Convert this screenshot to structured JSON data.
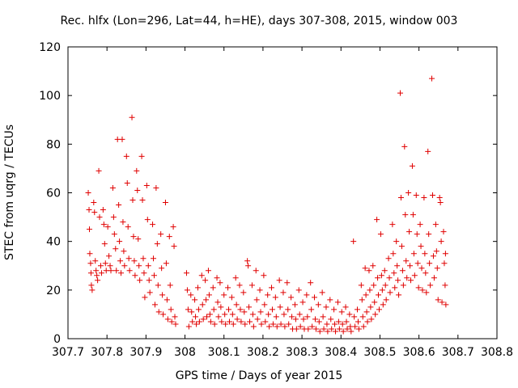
{
  "chart_data": {
    "type": "scatter",
    "title": "Rec. hlfx (Lon=296, Lat=44, h=HE), days 307-308, 2015, window 003",
    "xlabel": "GPS time / Days of year 2015",
    "ylabel": "STEC from uqrg / TECUs",
    "xlim": [
      307.7,
      308.8
    ],
    "ylim": [
      0,
      120
    ],
    "xticks": [
      307.7,
      307.8,
      307.9,
      308,
      308.1,
      308.2,
      308.3,
      308.4,
      308.5,
      308.6,
      308.7,
      308.8
    ],
    "xtick_labels": [
      "307.7",
      "307.8",
      "307.9",
      "308",
      "308.1",
      "308.2",
      "308.3",
      "308.4",
      "308.5",
      "308.6",
      "308.7",
      "308.8"
    ],
    "yticks": [
      0,
      20,
      40,
      60,
      80,
      100,
      120
    ],
    "ytick_labels": [
      "0",
      "20",
      "40",
      "60",
      "80",
      "100",
      "120"
    ],
    "grid": false,
    "marker": "+",
    "color": "#e00000",
    "points": [
      [
        307.752,
        60
      ],
      [
        307.754,
        53
      ],
      [
        307.755,
        45
      ],
      [
        307.756,
        35
      ],
      [
        307.758,
        31
      ],
      [
        307.759,
        27
      ],
      [
        307.76,
        22
      ],
      [
        307.762,
        20
      ],
      [
        307.766,
        56
      ],
      [
        307.768,
        52
      ],
      [
        307.77,
        32
      ],
      [
        307.772,
        28
      ],
      [
        307.774,
        26
      ],
      [
        307.776,
        24
      ],
      [
        307.779,
        69
      ],
      [
        307.781,
        50
      ],
      [
        307.784,
        30
      ],
      [
        307.786,
        27
      ],
      [
        307.79,
        53
      ],
      [
        307.792,
        47
      ],
      [
        307.794,
        39
      ],
      [
        307.796,
        31
      ],
      [
        307.798,
        28
      ],
      [
        307.802,
        46
      ],
      [
        307.805,
        34
      ],
      [
        307.808,
        30
      ],
      [
        307.81,
        28
      ],
      [
        307.815,
        62
      ],
      [
        307.817,
        50
      ],
      [
        307.819,
        43
      ],
      [
        307.822,
        37
      ],
      [
        307.824,
        28
      ],
      [
        307.827,
        82
      ],
      [
        307.83,
        55
      ],
      [
        307.832,
        40
      ],
      [
        307.834,
        32
      ],
      [
        307.836,
        27
      ],
      [
        307.839,
        82
      ],
      [
        307.841,
        48
      ],
      [
        307.843,
        36
      ],
      [
        307.845,
        30
      ],
      [
        307.85,
        75
      ],
      [
        307.852,
        64
      ],
      [
        307.854,
        46
      ],
      [
        307.856,
        33
      ],
      [
        307.858,
        28
      ],
      [
        307.864,
        91
      ],
      [
        307.866,
        57
      ],
      [
        307.868,
        42
      ],
      [
        307.87,
        32
      ],
      [
        307.872,
        26
      ],
      [
        307.876,
        69
      ],
      [
        307.878,
        61
      ],
      [
        307.88,
        41
      ],
      [
        307.882,
        30
      ],
      [
        307.884,
        24
      ],
      [
        307.889,
        75
      ],
      [
        307.891,
        57
      ],
      [
        307.893,
        33
      ],
      [
        307.895,
        27
      ],
      [
        307.897,
        17
      ],
      [
        307.902,
        63
      ],
      [
        307.904,
        49
      ],
      [
        307.906,
        30
      ],
      [
        307.908,
        24
      ],
      [
        307.91,
        19
      ],
      [
        307.917,
        47
      ],
      [
        307.919,
        33
      ],
      [
        307.921,
        26
      ],
      [
        307.923,
        14
      ],
      [
        307.926,
        62
      ],
      [
        307.929,
        39
      ],
      [
        307.931,
        22
      ],
      [
        307.933,
        11
      ],
      [
        307.938,
        43
      ],
      [
        307.94,
        29
      ],
      [
        307.942,
        18
      ],
      [
        307.944,
        10
      ],
      [
        307.95,
        56
      ],
      [
        307.952,
        31
      ],
      [
        307.954,
        16
      ],
      [
        307.956,
        8
      ],
      [
        307.96,
        42
      ],
      [
        307.962,
        22
      ],
      [
        307.964,
        12
      ],
      [
        307.966,
        7
      ],
      [
        307.97,
        46
      ],
      [
        307.972,
        38
      ],
      [
        307.974,
        9
      ],
      [
        307.976,
        6
      ],
      [
        308.004,
        27
      ],
      [
        308.006,
        20
      ],
      [
        308.008,
        12
      ],
      [
        308.01,
        5
      ],
      [
        308.015,
        18
      ],
      [
        308.017,
        11
      ],
      [
        308.019,
        7
      ],
      [
        308.025,
        16
      ],
      [
        308.027,
        9
      ],
      [
        308.029,
        6
      ],
      [
        308.033,
        21
      ],
      [
        308.035,
        12
      ],
      [
        308.037,
        7
      ],
      [
        308.043,
        26
      ],
      [
        308.045,
        14
      ],
      [
        308.047,
        8
      ],
      [
        308.052,
        24
      ],
      [
        308.054,
        16
      ],
      [
        308.056,
        9
      ],
      [
        308.06,
        28
      ],
      [
        308.062,
        18
      ],
      [
        308.064,
        10
      ],
      [
        308.066,
        7
      ],
      [
        308.072,
        21
      ],
      [
        308.074,
        12
      ],
      [
        308.076,
        6
      ],
      [
        308.082,
        25
      ],
      [
        308.084,
        15
      ],
      [
        308.086,
        9
      ],
      [
        308.09,
        23
      ],
      [
        308.092,
        13
      ],
      [
        308.094,
        7
      ],
      [
        308.1,
        18
      ],
      [
        308.102,
        10
      ],
      [
        308.104,
        6
      ],
      [
        308.11,
        21
      ],
      [
        308.112,
        12
      ],
      [
        308.114,
        7
      ],
      [
        308.12,
        17
      ],
      [
        308.122,
        10
      ],
      [
        308.124,
        6
      ],
      [
        308.13,
        25
      ],
      [
        308.132,
        14
      ],
      [
        308.134,
        8
      ],
      [
        308.14,
        22
      ],
      [
        308.142,
        12
      ],
      [
        308.144,
        7
      ],
      [
        308.15,
        19
      ],
      [
        308.152,
        11
      ],
      [
        308.154,
        6
      ],
      [
        308.16,
        32
      ],
      [
        308.162,
        30
      ],
      [
        308.164,
        13
      ],
      [
        308.166,
        7
      ],
      [
        308.172,
        22
      ],
      [
        308.174,
        10
      ],
      [
        308.176,
        5
      ],
      [
        308.182,
        28
      ],
      [
        308.184,
        16
      ],
      [
        308.186,
        8
      ],
      [
        308.192,
        20
      ],
      [
        308.194,
        11
      ],
      [
        308.196,
        6
      ],
      [
        308.202,
        26
      ],
      [
        308.204,
        14
      ],
      [
        308.206,
        7
      ],
      [
        308.212,
        18
      ],
      [
        308.214,
        10
      ],
      [
        308.216,
        5
      ],
      [
        308.222,
        21
      ],
      [
        308.224,
        12
      ],
      [
        308.226,
        6
      ],
      [
        308.232,
        17
      ],
      [
        308.234,
        9
      ],
      [
        308.236,
        5
      ],
      [
        308.242,
        24
      ],
      [
        308.244,
        13
      ],
      [
        308.246,
        6
      ],
      [
        308.252,
        19
      ],
      [
        308.254,
        10
      ],
      [
        308.256,
        5
      ],
      [
        308.262,
        23
      ],
      [
        308.264,
        12
      ],
      [
        308.266,
        6
      ],
      [
        308.272,
        17
      ],
      [
        308.274,
        9
      ],
      [
        308.276,
        4
      ],
      [
        308.282,
        14
      ],
      [
        308.284,
        8
      ],
      [
        308.286,
        4
      ],
      [
        308.292,
        20
      ],
      [
        308.294,
        10
      ],
      [
        308.296,
        5
      ],
      [
        308.302,
        15
      ],
      [
        308.304,
        8
      ],
      [
        308.306,
        4
      ],
      [
        308.312,
        18
      ],
      [
        308.314,
        9
      ],
      [
        308.316,
        4
      ],
      [
        308.322,
        23
      ],
      [
        308.324,
        12
      ],
      [
        308.326,
        5
      ],
      [
        308.332,
        17
      ],
      [
        308.334,
        8
      ],
      [
        308.336,
        4
      ],
      [
        308.342,
        14
      ],
      [
        308.344,
        7
      ],
      [
        308.346,
        3
      ],
      [
        308.352,
        19
      ],
      [
        308.354,
        9
      ],
      [
        308.356,
        4
      ],
      [
        308.362,
        13
      ],
      [
        308.364,
        6
      ],
      [
        308.366,
        3
      ],
      [
        308.372,
        16
      ],
      [
        308.374,
        8
      ],
      [
        308.376,
        4
      ],
      [
        308.382,
        12
      ],
      [
        308.384,
        6
      ],
      [
        308.386,
        3
      ],
      [
        308.392,
        15
      ],
      [
        308.394,
        7
      ],
      [
        308.396,
        4
      ],
      [
        308.402,
        11
      ],
      [
        308.404,
        6
      ],
      [
        308.406,
        3
      ],
      [
        308.412,
        13
      ],
      [
        308.414,
        7
      ],
      [
        308.416,
        4
      ],
      [
        308.422,
        10
      ],
      [
        308.424,
        5
      ],
      [
        308.426,
        3
      ],
      [
        308.432,
        40
      ],
      [
        308.434,
        9
      ],
      [
        308.436,
        5
      ],
      [
        308.442,
        12
      ],
      [
        308.444,
        7
      ],
      [
        308.446,
        4
      ],
      [
        308.452,
        22
      ],
      [
        308.454,
        16
      ],
      [
        308.456,
        9
      ],
      [
        308.458,
        5
      ],
      [
        308.462,
        29
      ],
      [
        308.464,
        18
      ],
      [
        308.466,
        11
      ],
      [
        308.468,
        7
      ],
      [
        308.472,
        28
      ],
      [
        308.474,
        20
      ],
      [
        308.476,
        13
      ],
      [
        308.478,
        8
      ],
      [
        308.482,
        30
      ],
      [
        308.484,
        22
      ],
      [
        308.486,
        15
      ],
      [
        308.488,
        10
      ],
      [
        308.492,
        49
      ],
      [
        308.494,
        25
      ],
      [
        308.496,
        18
      ],
      [
        308.498,
        12
      ],
      [
        308.502,
        43
      ],
      [
        308.504,
        26
      ],
      [
        308.506,
        20
      ],
      [
        308.508,
        14
      ],
      [
        308.512,
        28
      ],
      [
        308.514,
        22
      ],
      [
        308.516,
        16
      ],
      [
        308.522,
        33
      ],
      [
        308.524,
        25
      ],
      [
        308.526,
        19
      ],
      [
        308.532,
        47
      ],
      [
        308.534,
        35
      ],
      [
        308.536,
        27
      ],
      [
        308.538,
        21
      ],
      [
        308.542,
        40
      ],
      [
        308.544,
        30
      ],
      [
        308.546,
        24
      ],
      [
        308.548,
        18
      ],
      [
        308.552,
        101
      ],
      [
        308.554,
        58
      ],
      [
        308.556,
        38
      ],
      [
        308.558,
        28
      ],
      [
        308.56,
        22
      ],
      [
        308.563,
        79
      ],
      [
        308.565,
        51
      ],
      [
        308.567,
        32
      ],
      [
        308.569,
        25
      ],
      [
        308.573,
        60
      ],
      [
        308.575,
        44
      ],
      [
        308.577,
        30
      ],
      [
        308.579,
        24
      ],
      [
        308.583,
        71
      ],
      [
        308.585,
        51
      ],
      [
        308.587,
        35
      ],
      [
        308.589,
        26
      ],
      [
        308.593,
        59
      ],
      [
        308.595,
        43
      ],
      [
        308.597,
        31
      ],
      [
        308.599,
        21
      ],
      [
        308.603,
        47
      ],
      [
        308.605,
        38
      ],
      [
        308.607,
        29
      ],
      [
        308.609,
        20
      ],
      [
        308.613,
        58
      ],
      [
        308.615,
        35
      ],
      [
        308.617,
        27
      ],
      [
        308.619,
        19
      ],
      [
        308.623,
        77
      ],
      [
        308.625,
        43
      ],
      [
        308.627,
        31
      ],
      [
        308.629,
        22
      ],
      [
        308.633,
        107
      ],
      [
        308.635,
        59
      ],
      [
        308.637,
        34
      ],
      [
        308.639,
        25
      ],
      [
        308.643,
        47
      ],
      [
        308.645,
        36
      ],
      [
        308.647,
        29
      ],
      [
        308.649,
        16
      ],
      [
        308.653,
        58
      ],
      [
        308.655,
        56
      ],
      [
        308.657,
        40
      ],
      [
        308.659,
        15
      ],
      [
        308.663,
        44
      ],
      [
        308.665,
        31
      ],
      [
        308.667,
        22
      ],
      [
        308.669,
        14
      ],
      [
        308.668,
        35
      ]
    ]
  }
}
